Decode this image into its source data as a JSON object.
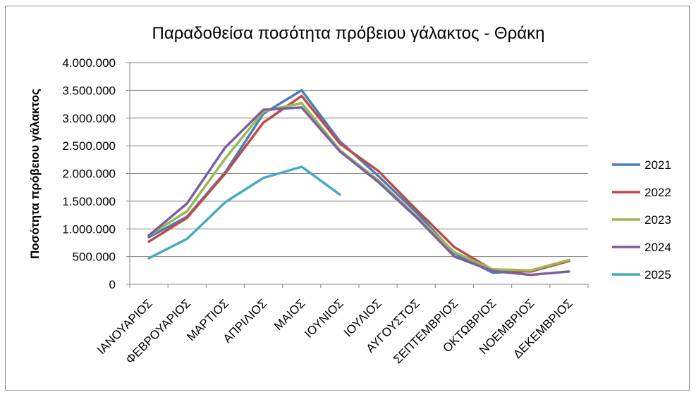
{
  "chart_data": {
    "type": "line",
    "title": "Παραδοθείσα ποσότητα πρόβειου γάλακτος - Θράκη",
    "xlabel": "",
    "ylabel": "Ποσότητα πρόβειου γάλακτος",
    "ylim": [
      0,
      4000000
    ],
    "y_ticks": [
      0,
      500000,
      1000000,
      1500000,
      2000000,
      2500000,
      3000000,
      3500000,
      4000000
    ],
    "y_tick_labels": [
      "0",
      "500.000",
      "1.000.000",
      "1.500.000",
      "2.000.000",
      "2.500.000",
      "3.000.000",
      "3.500.000",
      "4.000.000"
    ],
    "grid": true,
    "legend_position": "right",
    "categories": [
      "ΙΑΝΟΥΑΡΙΟΣ",
      "ΦΕΒΡΟΥΑΡΙΟΣ",
      "ΜΑΡΤΙΟΣ",
      "ΑΠΡΙΛΙΟΣ",
      "ΜΑΙΟΣ",
      "ΙΟΥΝΙΟΣ",
      "ΙΟΥΛΙΟΣ",
      "ΑΥΓΟΥΣΤΟΣ",
      "ΣΕΠΤΕΜΒΡΙΟΣ",
      "ΟΚΤΩΒΡΙΟΣ",
      "ΝΟΕΜΒΡΙΟΣ",
      "ΔΕΚΕΜΒΡΙΟΣ"
    ],
    "series": [
      {
        "name": "2021",
        "color": "#4a7ebb",
        "values": [
          850000,
          1220000,
          2020000,
          3080000,
          3500000,
          2580000,
          1960000,
          1300000,
          560000,
          210000,
          240000,
          420000
        ]
      },
      {
        "name": "2022",
        "color": "#be4b48",
        "values": [
          770000,
          1200000,
          2000000,
          2920000,
          3400000,
          2540000,
          2050000,
          1350000,
          670000,
          260000,
          230000,
          420000
        ]
      },
      {
        "name": "2023",
        "color": "#98b954",
        "values": [
          880000,
          1320000,
          2270000,
          3120000,
          3270000,
          2420000,
          1880000,
          1230000,
          580000,
          270000,
          250000,
          440000
        ]
      },
      {
        "name": "2024",
        "color": "#7d5fa0",
        "values": [
          880000,
          1460000,
          2470000,
          3150000,
          3190000,
          2400000,
          1850000,
          1210000,
          500000,
          240000,
          170000,
          230000
        ]
      },
      {
        "name": "2025",
        "color": "#46aac5",
        "values": [
          470000,
          820000,
          1480000,
          1920000,
          2120000,
          1620000,
          null,
          null,
          null,
          null,
          null,
          null
        ]
      }
    ]
  }
}
